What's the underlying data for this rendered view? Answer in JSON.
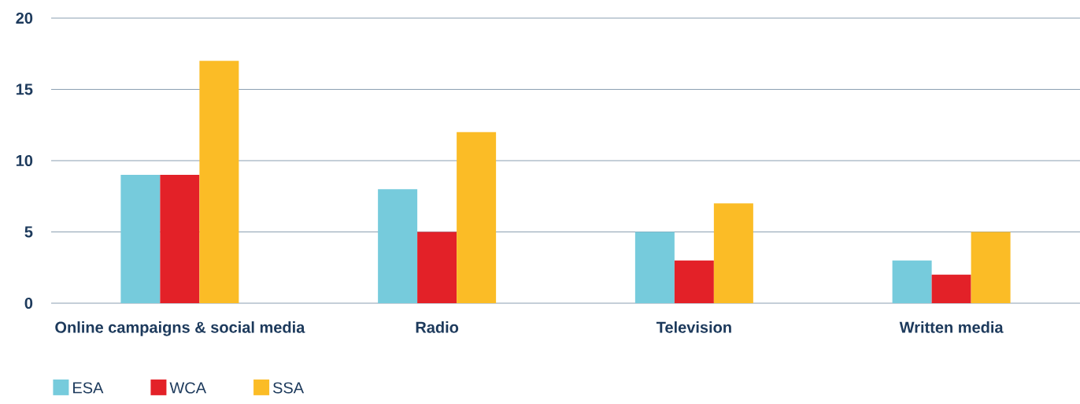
{
  "chart_data": {
    "type": "bar",
    "categories": [
      "Online campaigns & social media",
      "Radio",
      "Television",
      "Written media"
    ],
    "series": [
      {
        "name": "ESA",
        "color": "#76cbdc",
        "values": [
          9,
          8,
          5,
          3
        ]
      },
      {
        "name": "WCA",
        "color": "#e32128",
        "values": [
          9,
          5,
          3,
          2
        ]
      },
      {
        "name": "SSA",
        "color": "#fbbc26",
        "values": [
          17,
          12,
          7,
          5
        ]
      }
    ],
    "ylim": [
      0,
      20
    ],
    "yticks": [
      0,
      5,
      10,
      15,
      20
    ],
    "grid": "y",
    "legend": "bottom"
  }
}
